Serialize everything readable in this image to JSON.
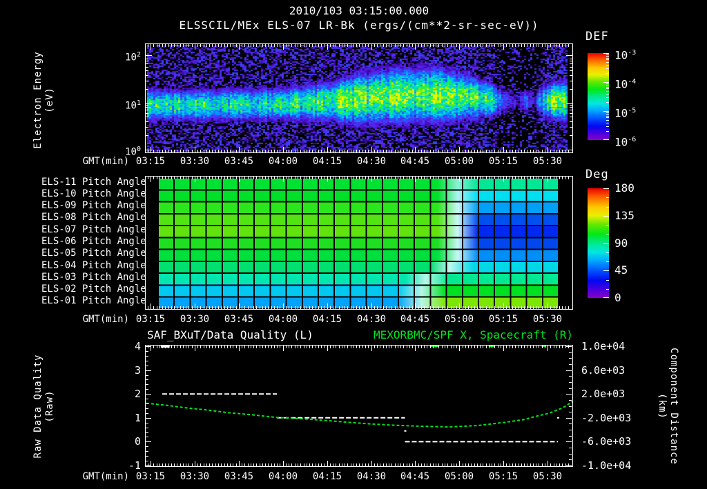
{
  "header": {
    "datetime": "2010/103 03:15:00.000",
    "instrument_title": "ELSSCIL/MEx ELS-07 LR-Bk  (ergs/(cm**2-sr-sec-eV))"
  },
  "time_axis": {
    "label": "GMT(min)",
    "tick_labels": [
      "03:15",
      "03:30",
      "03:45",
      "04:00",
      "04:15",
      "04:30",
      "04:45",
      "05:00",
      "05:15",
      "05:30"
    ]
  },
  "spectrogram_panel": {
    "ylabel_line1": "Electron Energy",
    "ylabel_line2": "(eV)",
    "ytick_exponents": [
      "2",
      "1",
      "0"
    ],
    "colorbar": {
      "title": "DEF",
      "tick_exponents": [
        "-3",
        "-4",
        "-5",
        "-6"
      ]
    }
  },
  "pitch_panel": {
    "colorbar": {
      "title": "Deg",
      "tick_labels": [
        "180",
        "135",
        "90",
        "45",
        "0"
      ]
    }
  },
  "bottom_panel": {
    "left_title": "SAF_BXuT/Data Quality (L)",
    "right_title": "MEXORBMC/SPF X, Spacecraft (R)",
    "ylabel_line1": "Raw Data Quality",
    "ylabel_line2": "(Raw)",
    "right_label_line1": "Component Distance",
    "right_label_line2": "(km)",
    "left_tick_labels": [
      "4",
      "3",
      "2",
      "1",
      "0",
      "-1"
    ],
    "right_tick_labels": [
      "1.0e+04",
      "6.0e+03",
      "2.0e+03",
      "-2.0e+03",
      "-6.0e+03",
      "-1.0e+04"
    ]
  },
  "colors": {
    "accent_green": "#00e61c",
    "rainbow": [
      [
        0,
        "#e80000"
      ],
      [
        0.08,
        "#ff6400"
      ],
      [
        0.17,
        "#ffc800"
      ],
      [
        0.25,
        "#e8f000"
      ],
      [
        0.33,
        "#64e800"
      ],
      [
        0.42,
        "#00e818"
      ],
      [
        0.5,
        "#00e88c"
      ],
      [
        0.58,
        "#00e8e0"
      ],
      [
        0.66,
        "#00a8ff"
      ],
      [
        0.75,
        "#0054ff"
      ],
      [
        0.84,
        "#0008f0"
      ],
      [
        0.92,
        "#4800e0"
      ],
      [
        1,
        "#8800c8"
      ]
    ]
  },
  "chart_data": [
    {
      "type": "heatmap",
      "name": "electron-energy-spectrogram",
      "title": "ELSSCIL/MEx ELS-07 LR-Bk",
      "units": "ergs/(cm**2-sr-sec-eV)",
      "x_range_gmt": [
        "03:15",
        "05:45"
      ],
      "y_scale": "log",
      "y_range_ev": [
        1,
        200
      ],
      "value_range": [
        1e-06,
        0.001
      ],
      "band_amp": [
        [
          0,
          0.62
        ],
        [
          0.06,
          0.58
        ],
        [
          0.12,
          0.62
        ],
        [
          0.18,
          0.58
        ],
        [
          0.24,
          0.63
        ],
        [
          0.3,
          0.6
        ],
        [
          0.34,
          0.68
        ],
        [
          0.38,
          0.62
        ],
        [
          0.42,
          0.72
        ],
        [
          0.46,
          0.8
        ],
        [
          0.5,
          0.85
        ],
        [
          0.54,
          0.78
        ],
        [
          0.58,
          0.82
        ],
        [
          0.62,
          0.75
        ],
        [
          0.66,
          0.82
        ],
        [
          0.7,
          0.8
        ],
        [
          0.73,
          0.85
        ],
        [
          0.76,
          0.68
        ],
        [
          0.79,
          0.72
        ],
        [
          0.82,
          0.55
        ],
        [
          0.85,
          0.2
        ],
        [
          0.88,
          0.12
        ],
        [
          0.9,
          0.3
        ],
        [
          0.92,
          0.12
        ],
        [
          0.94,
          0.5
        ],
        [
          0.96,
          0.8
        ],
        [
          1,
          0.78
        ]
      ],
      "band_center": [
        [
          0,
          0.56
        ],
        [
          0.3,
          0.55
        ],
        [
          0.45,
          0.52
        ],
        [
          0.55,
          0.48
        ],
        [
          0.65,
          0.46
        ],
        [
          0.75,
          0.48
        ],
        [
          0.85,
          0.52
        ],
        [
          1,
          0.52
        ]
      ],
      "band_width": [
        [
          0,
          0.15
        ],
        [
          0.35,
          0.16
        ],
        [
          0.45,
          0.2
        ],
        [
          0.5,
          0.24
        ],
        [
          0.6,
          0.26
        ],
        [
          0.7,
          0.26
        ],
        [
          0.78,
          0.2
        ],
        [
          0.85,
          0.14
        ],
        [
          0.92,
          0.14
        ],
        [
          1,
          0.2
        ]
      ],
      "bg_sparse": [
        [
          0,
          1
        ],
        [
          0.82,
          1
        ],
        [
          0.85,
          0.4
        ],
        [
          0.87,
          0.7
        ],
        [
          0.89,
          0.3
        ],
        [
          0.91,
          0.6
        ],
        [
          0.93,
          0.4
        ],
        [
          0.95,
          1
        ],
        [
          1,
          1
        ]
      ],
      "colormap": [
        [
          0,
          "#000000"
        ],
        [
          0.08,
          "#30009a"
        ],
        [
          0.16,
          "#5a20e8"
        ],
        [
          0.26,
          "#2a50ff"
        ],
        [
          0.38,
          "#00a0ff"
        ],
        [
          0.5,
          "#00e0d8"
        ],
        [
          0.62,
          "#00ec80"
        ],
        [
          0.74,
          "#38f22a"
        ],
        [
          0.86,
          "#a8f400"
        ],
        [
          1,
          "#f0f400"
        ]
      ]
    },
    {
      "type": "heatmap",
      "name": "pitch-angle-rows",
      "deg_range": [
        0,
        180
      ],
      "columns": 25,
      "rows": [
        {
          "label": "ELS-11 Pitch Angle",
          "left": "#00e232",
          "mid": "#8ff0d8",
          "right": "#00e896",
          "p": [
            70,
            75,
            80
          ]
        },
        {
          "label": "ELS-10 Pitch Angle",
          "left": "#00e028",
          "mid": "#aff2f2",
          "right": "#00dff2",
          "p": [
            70,
            75,
            80
          ]
        },
        {
          "label": "ELS-09 Pitch Angle",
          "left": "#2ce61c",
          "mid": "#c8f8f8",
          "right": "#009ff8",
          "p": [
            70,
            75,
            80
          ]
        },
        {
          "label": "ELS-08 Pitch Angle",
          "left": "#52e412",
          "mid": "#c8f8f8",
          "right": "#0050f0",
          "p": [
            70,
            75,
            80
          ]
        },
        {
          "label": "ELS-07 Pitch Angle",
          "left": "#62e20e",
          "mid": "#c8f8f8",
          "right": "#0028f0",
          "p": [
            70,
            75,
            80
          ]
        },
        {
          "label": "ELS-06 Pitch Angle",
          "left": "#1ce020",
          "mid": "#c8f8f8",
          "right": "#0047f0",
          "p": [
            70,
            75,
            80
          ]
        },
        {
          "label": "ELS-05 Pitch Angle",
          "left": "#00e03c",
          "mid": "#c8f8f8",
          "right": "#008ef8",
          "p": [
            70,
            75,
            80
          ]
        },
        {
          "label": "ELS-04 Pitch Angle",
          "left": "#00e070",
          "mid": "#c0f6f0",
          "right": "#00d8e8",
          "p": [
            68,
            73,
            79
          ]
        },
        {
          "label": "ELS-03 Pitch Angle",
          "left": "#00e6ae",
          "mid": "#b8f6e8",
          "right": "#00e892",
          "p": [
            62,
            67,
            73
          ]
        },
        {
          "label": "ELS-02 Pitch Angle",
          "left": "#00c8f0",
          "mid": "#b8f6e8",
          "right": "#00e022",
          "p": [
            60,
            66,
            72
          ]
        },
        {
          "label": "ELS-01 Pitch Angle",
          "left": "#00a2fa",
          "mid": "#b8f6e8",
          "right": "#7ce600",
          "p": [
            60,
            66,
            72
          ]
        }
      ]
    },
    {
      "type": "line",
      "name": "quality-and-distance",
      "x_unit": "minutes since 03:15",
      "left_ylim": [
        -1,
        4
      ],
      "right_ylim": [
        -10000,
        10000
      ],
      "series": [
        {
          "name": "SAF_BXuT/Data Quality (L)",
          "axis": "left",
          "color": "#ffffff",
          "style": "dashed",
          "segments": [
            [
              4,
              43,
              2
            ],
            [
              43,
              86.5,
              1
            ],
            [
              86.5,
              138.5,
              0
            ]
          ],
          "points": [
            [
              86.5,
              0.45
            ],
            [
              138.5,
              1
            ]
          ]
        },
        {
          "name": "MEXORBMC/SPF X, Spacecraft (R)",
          "axis": "right",
          "color": "#00e61c",
          "style": "dashed",
          "points": [
            [
              -1.4,
              455
            ],
            [
              5.2,
              113
            ],
            [
              12.2,
              -341
            ],
            [
              19.2,
              -682
            ],
            [
              26.3,
              -1136
            ],
            [
              34.3,
              -1477
            ],
            [
              42.7,
              -1932
            ],
            [
              53.5,
              -2216
            ],
            [
              63.8,
              -2614
            ],
            [
              72.8,
              -2955
            ],
            [
              82.6,
              -3239
            ],
            [
              92,
              -3409
            ],
            [
              101.6,
              -3523
            ],
            [
              111.3,
              -3295
            ],
            [
              120.9,
              -2727
            ],
            [
              127.2,
              -2273
            ],
            [
              130.5,
              -1818
            ],
            [
              135.4,
              -1250
            ],
            [
              140.1,
              -341
            ],
            [
              143.7,
              795
            ]
          ]
        }
      ],
      "top_axis_marks": {
        "white": [
          [
            3.5,
            6.5
          ]
        ],
        "green": [
          [
            95,
            98
          ],
          [
            115,
            117
          ],
          [
            133,
            134.5
          ]
        ]
      }
    }
  ]
}
